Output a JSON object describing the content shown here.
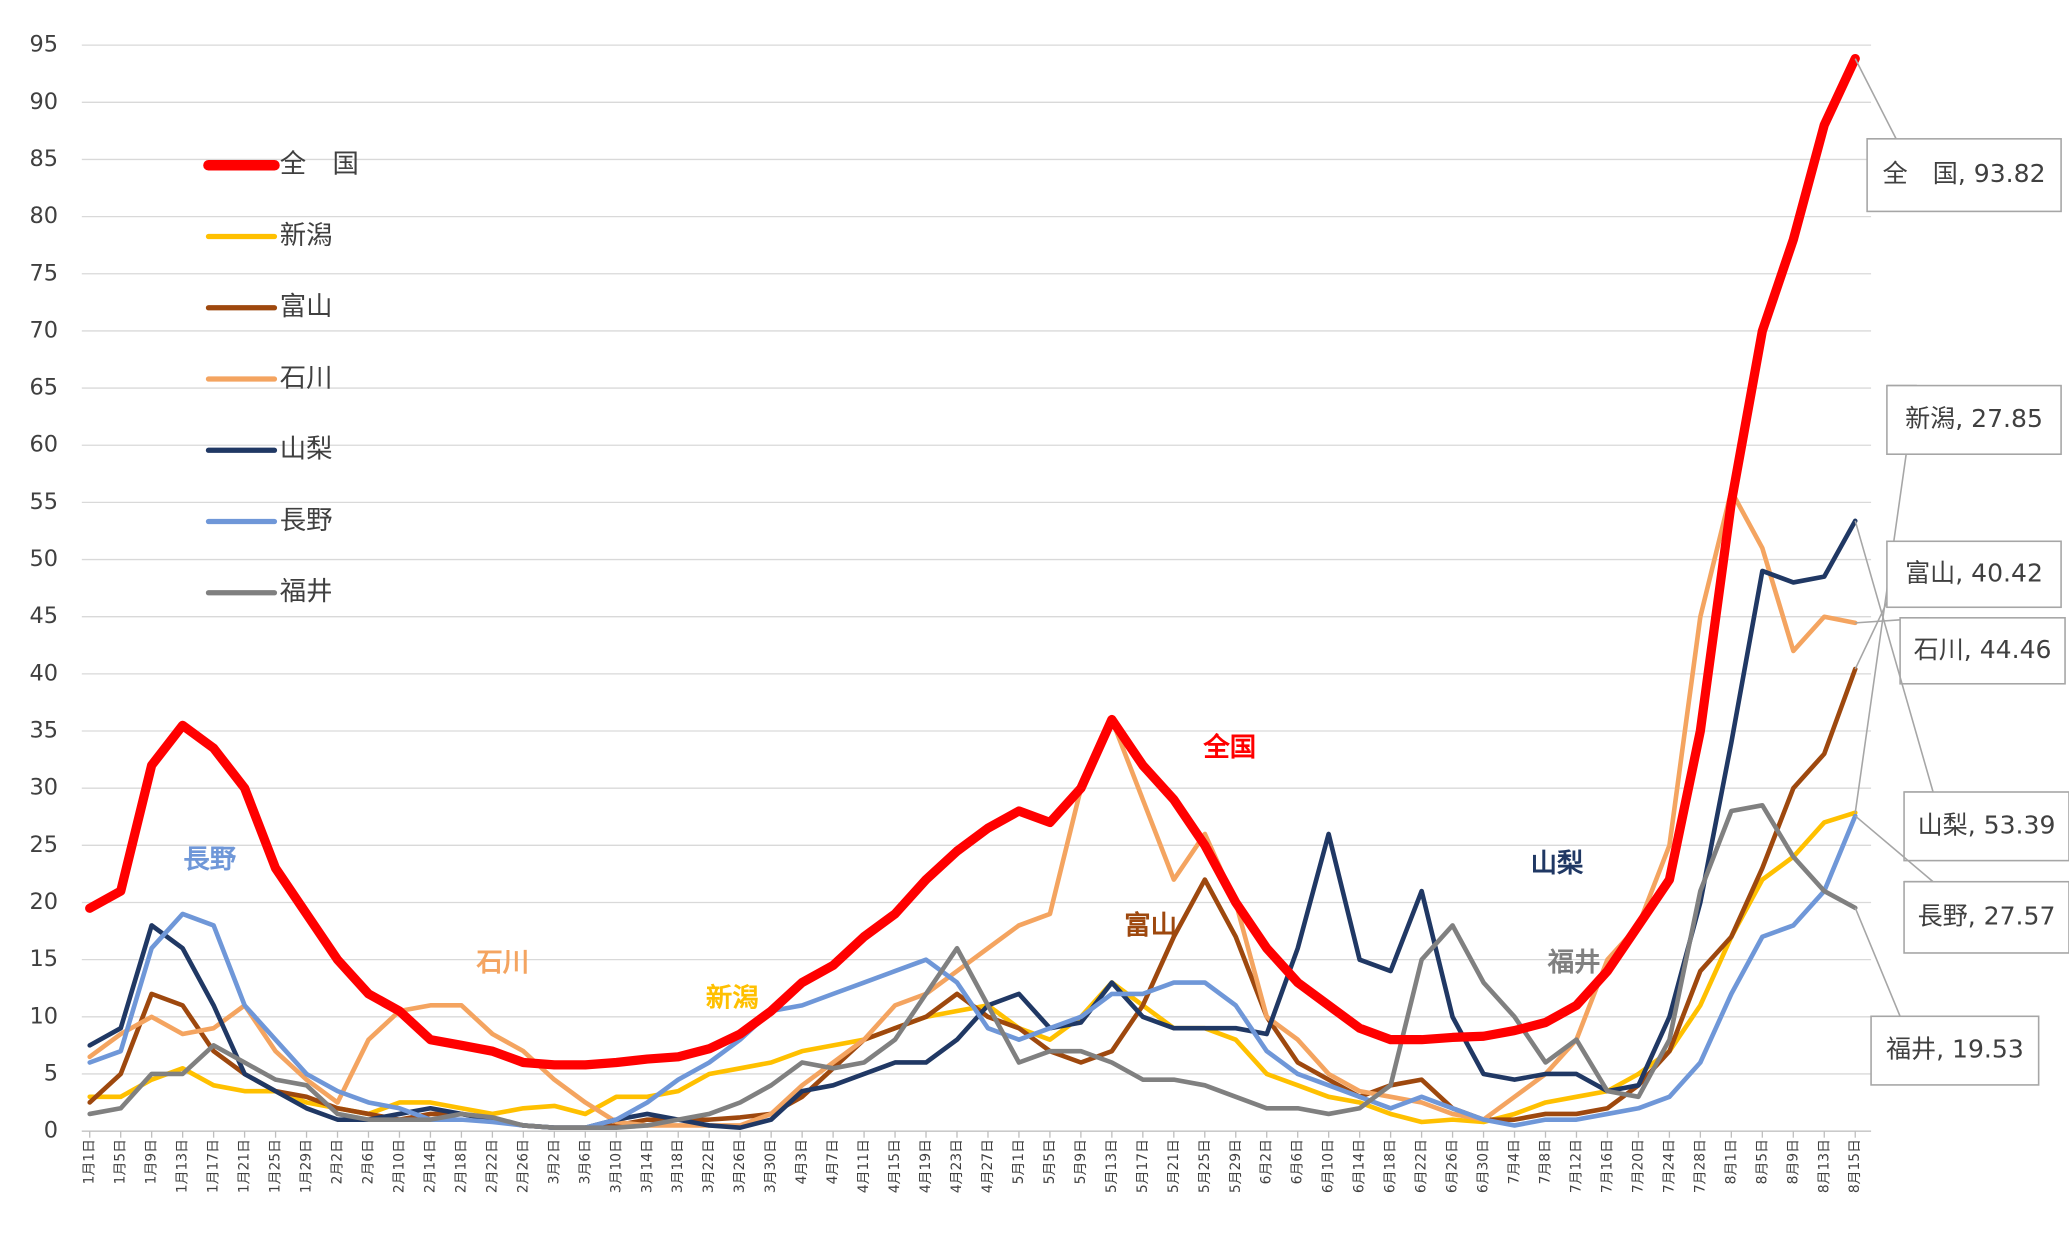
{
  "chart_data": {
    "type": "line",
    "categories": [
      "1月1日",
      "1月5日",
      "1月9日",
      "1月13日",
      "1月17日",
      "1月21日",
      "1月25日",
      "1月29日",
      "2月2日",
      "2月6日",
      "2月10日",
      "2月14日",
      "2月18日",
      "2月22日",
      "2月26日",
      "3月2日",
      "3月6日",
      "3月10日",
      "3月14日",
      "3月18日",
      "3月22日",
      "3月26日",
      "3月30日",
      "4月3日",
      "4月7日",
      "4月11日",
      "4月15日",
      "4月19日",
      "4月23日",
      "4月27日",
      "5月1日",
      "5月5日",
      "5月9日",
      "5月13日",
      "5月17日",
      "5月21日",
      "5月25日",
      "5月29日",
      "6月2日",
      "6月6日",
      "6月10日",
      "6月14日",
      "6月18日",
      "6月22日",
      "6月26日",
      "6月30日",
      "7月4日",
      "7月8日",
      "7月12日",
      "7月16日",
      "7月20日",
      "7月24日",
      "7月28日",
      "8月1日",
      "8月5日",
      "8月9日",
      "8月13日",
      "8月15日"
    ],
    "series": [
      {
        "name": "全　国",
        "color": "#ff0000",
        "width": 7,
        "end_label": "全　国, 93.82",
        "values": [
          19.5,
          21,
          32,
          35.5,
          33.5,
          30,
          23,
          19,
          15,
          12,
          10.5,
          8,
          7.5,
          7,
          6,
          5.8,
          5.8,
          6,
          6.3,
          6.5,
          7.2,
          8.5,
          10.5,
          13,
          14.5,
          17,
          19,
          22,
          24.5,
          26.5,
          28,
          27,
          30,
          36,
          32,
          29,
          25,
          20,
          16,
          13,
          11,
          9,
          8,
          8,
          8.2,
          8.3,
          8.8,
          9.5,
          11,
          14,
          18,
          22,
          35,
          55,
          70,
          78,
          88,
          93.82
        ]
      },
      {
        "name": "新潟",
        "color": "#ffc000",
        "width": 3.5,
        "end_label": "新潟, 27.85",
        "values": [
          3,
          3,
          4.5,
          5.5,
          4,
          3.5,
          3.5,
          2.5,
          2,
          1.5,
          2.5,
          2.5,
          2,
          1.5,
          2,
          2.2,
          1.5,
          3,
          3,
          3.5,
          5,
          5.5,
          6,
          7,
          7.5,
          8,
          9,
          10,
          10.5,
          11,
          9,
          8,
          10,
          13,
          11,
          9,
          9,
          8,
          5,
          4,
          3,
          2.5,
          1.5,
          0.8,
          1,
          0.8,
          1.5,
          2.5,
          3,
          3.5,
          5,
          7,
          11,
          17,
          22,
          24,
          27,
          27.85
        ]
      },
      {
        "name": "富山",
        "color": "#9e480e",
        "width": 3.5,
        "end_label": "富山, 40.42",
        "values": [
          2.5,
          5,
          12,
          11,
          7,
          5,
          3.5,
          3,
          2,
          1.5,
          1,
          1.5,
          1.5,
          1,
          0.5,
          0.3,
          0.3,
          0.5,
          1,
          1,
          1,
          1.2,
          1.5,
          3,
          5.5,
          8,
          9,
          10,
          12,
          10,
          9,
          7,
          6,
          7,
          11,
          17,
          22,
          17,
          10,
          6,
          4.5,
          3,
          4,
          4.5,
          2,
          1,
          1,
          1.5,
          1.5,
          2,
          4,
          7,
          14,
          17,
          23,
          30,
          33,
          40.42
        ]
      },
      {
        "name": "石川",
        "color": "#f4a460",
        "width": 3.5,
        "end_label": "石川, 44.46",
        "values": [
          6.5,
          8.5,
          10,
          8.5,
          9,
          11,
          7,
          4.5,
          2.5,
          8,
          10.5,
          11,
          11,
          8.5,
          7,
          4.5,
          2.5,
          0.8,
          0.5,
          0.5,
          0.5,
          0.5,
          1.5,
          4,
          6,
          8,
          11,
          12,
          14,
          16,
          18,
          19,
          30,
          36,
          29,
          22,
          26,
          20,
          10,
          8,
          5,
          3.5,
          3,
          2.5,
          1.5,
          1,
          3,
          5,
          8,
          15,
          18,
          25,
          45,
          56,
          51,
          42,
          45,
          44.46
        ]
      },
      {
        "name": "山梨",
        "color": "#203864",
        "width": 3.5,
        "end_label": "山梨, 53.39",
        "values": [
          7.5,
          9,
          18,
          16,
          11,
          5,
          3.5,
          2,
          1,
          1,
          1.5,
          2,
          1.5,
          1,
          0.5,
          0.3,
          0.3,
          1,
          1.5,
          1,
          0.5,
          0.3,
          1,
          3.5,
          4,
          5,
          6,
          6,
          8,
          11,
          12,
          9,
          9.5,
          13,
          10,
          9,
          9,
          9,
          8.5,
          16,
          26,
          15,
          14,
          21,
          10,
          5,
          4.5,
          5,
          5,
          3.5,
          4,
          10,
          20,
          34,
          49,
          48,
          48.5,
          53.39
        ]
      },
      {
        "name": "長野",
        "color": "#6f97d8",
        "width": 3.5,
        "end_label": "長野, 27.57",
        "values": [
          6,
          7,
          16,
          19,
          18,
          11,
          8,
          5,
          3.5,
          2.5,
          2,
          1,
          1,
          0.8,
          0.5,
          0.3,
          0.3,
          1,
          2.5,
          4.5,
          6,
          8,
          10.5,
          11,
          12,
          13,
          14,
          15,
          13,
          9,
          8,
          9,
          10,
          12,
          12,
          13,
          13,
          11,
          7,
          5,
          4,
          3,
          2,
          3,
          2,
          1,
          0.5,
          1,
          1,
          1.5,
          2,
          3,
          6,
          12,
          17,
          18,
          21,
          27.57
        ]
      },
      {
        "name": "福井",
        "color": "#808080",
        "width": 3.5,
        "end_label": "福井, 19.53",
        "values": [
          1.5,
          2,
          5,
          5,
          7.5,
          6,
          4.5,
          4,
          1.5,
          1,
          1,
          1,
          1.5,
          1.2,
          0.5,
          0.3,
          0.3,
          0.3,
          0.5,
          1,
          1.5,
          2.5,
          4,
          6,
          5.5,
          6,
          8,
          12,
          16,
          11,
          6,
          7,
          7,
          6,
          4.5,
          4.5,
          4,
          3,
          2,
          2,
          1.5,
          2,
          4,
          15,
          18,
          13,
          10,
          6,
          8,
          3.5,
          3,
          8,
          21,
          28,
          28.5,
          24,
          21,
          19.53
        ]
      }
    ],
    "annotations": [
      {
        "text": "全国",
        "color": "#ff0000"
      },
      {
        "text": "山梨",
        "color": "#203864"
      },
      {
        "text": "富山",
        "color": "#9e480e"
      },
      {
        "text": "福井",
        "color": "#808080"
      },
      {
        "text": "石川",
        "color": "#f4a460"
      },
      {
        "text": "新潟",
        "color": "#ffc000"
      },
      {
        "text": "長野",
        "color": "#6f97d8"
      }
    ],
    "ylim": [
      0,
      95
    ],
    "yticks": [
      0,
      5,
      10,
      15,
      20,
      25,
      30,
      35,
      40,
      45,
      50,
      55,
      60,
      65,
      70,
      75,
      80,
      85,
      90,
      95
    ],
    "grid": true,
    "legend": "upper left"
  }
}
